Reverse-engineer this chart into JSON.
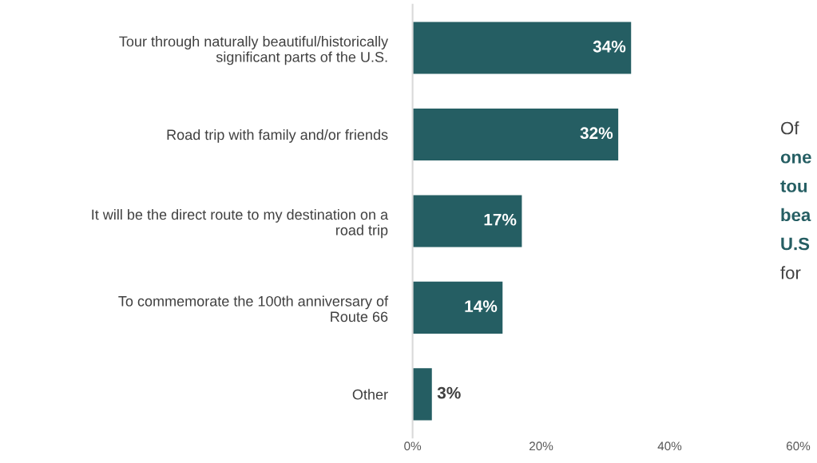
{
  "chart_data": {
    "type": "bar",
    "orientation": "horizontal",
    "categories": [
      "Tour through naturally beautiful/historically\nsignificant parts of the U.S.",
      "Road trip with family and/or friends",
      "It will be the direct route to my destination on a\nroad trip",
      "To commemorate the 100th anniversary of\nRoute 66",
      "Other"
    ],
    "values": [
      34,
      32,
      17,
      14,
      3
    ],
    "color": "#255e63",
    "value_labels": [
      "34%",
      "32%",
      "17%",
      "14%",
      "3%"
    ],
    "xlim": [
      0,
      60
    ],
    "xticks": [
      {
        "value": 0,
        "label": "0%"
      },
      {
        "value": 20,
        "label": "20%"
      },
      {
        "value": 40,
        "label": "40%"
      },
      {
        "value": 60,
        "label": "60%"
      }
    ],
    "grid": false,
    "annotations": [
      "Of",
      "one",
      "tou",
      "bea",
      "U.S",
      "for"
    ]
  }
}
